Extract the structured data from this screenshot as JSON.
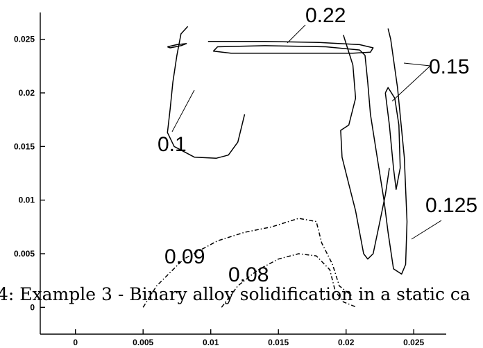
{
  "chart_data": {
    "type": "contour",
    "title": "",
    "xlabel": "",
    "ylabel": "",
    "xlim": [
      -0.0026,
      0.0274
    ],
    "ylim": [
      -0.0025,
      0.0275
    ],
    "x_ticks": [
      {
        "value": 0,
        "label": "0"
      },
      {
        "value": 0.005,
        "label": "0.005"
      },
      {
        "value": 0.01,
        "label": "0.01"
      },
      {
        "value": 0.015,
        "label": "0.015"
      },
      {
        "value": 0.02,
        "label": "0.02"
      },
      {
        "value": 0.025,
        "label": "0.025"
      }
    ],
    "y_ticks": [
      {
        "value": 0,
        "label": "0"
      },
      {
        "value": 0.005,
        "label": "0.005"
      },
      {
        "value": 0.01,
        "label": "0.01"
      },
      {
        "value": 0.015,
        "label": "0.015"
      },
      {
        "value": 0.02,
        "label": "0.02"
      },
      {
        "value": 0.025,
        "label": "0.025"
      }
    ],
    "grid": false,
    "contours": [
      {
        "level": "0.22",
        "style": "solid",
        "points": [
          [
            0.0068,
            0.0243
          ],
          [
            0.0075,
            0.0245
          ],
          [
            0.0082,
            0.0246
          ],
          [
            0.0078,
            0.0244
          ],
          [
            0.007,
            0.0242
          ],
          [
            0.0068,
            0.0243
          ]
        ]
      },
      {
        "level": "0.15",
        "style": "solid",
        "points": [
          [
            0.0098,
            0.0248
          ],
          [
            0.014,
            0.0248
          ],
          [
            0.018,
            0.0247
          ],
          [
            0.021,
            0.0245
          ],
          [
            0.022,
            0.0242
          ],
          [
            0.0218,
            0.0238
          ],
          [
            0.0205,
            0.0237
          ],
          [
            0.015,
            0.0237
          ],
          [
            0.0115,
            0.0237
          ],
          [
            0.0102,
            0.0239
          ],
          [
            0.0105,
            0.0243
          ],
          [
            0.014,
            0.0244
          ],
          [
            0.0185,
            0.0243
          ],
          [
            0.021,
            0.024
          ],
          [
            0.0214,
            0.0235
          ],
          [
            0.0216,
            0.021
          ],
          [
            0.0218,
            0.018
          ],
          [
            0.0223,
            0.014
          ],
          [
            0.0228,
            0.01
          ],
          [
            0.0231,
            0.007
          ],
          [
            0.0235,
            0.0036
          ],
          [
            0.0241,
            0.0031
          ],
          [
            0.0244,
            0.004
          ],
          [
            0.0245,
            0.008
          ],
          [
            0.0243,
            0.014
          ],
          [
            0.0238,
            0.0205
          ],
          [
            0.0233,
            0.025
          ],
          [
            0.0231,
            0.026
          ]
        ]
      },
      {
        "level": "0.15",
        "style": "solid",
        "points": [
          [
            0.0229,
            0.02
          ],
          [
            0.0232,
            0.017
          ],
          [
            0.0235,
            0.013
          ],
          [
            0.0237,
            0.011
          ],
          [
            0.024,
            0.013
          ],
          [
            0.0239,
            0.017
          ],
          [
            0.0236,
            0.0195
          ],
          [
            0.0231,
            0.0205
          ],
          [
            0.0229,
            0.02
          ]
        ]
      },
      {
        "level": "0.125",
        "style": "solid",
        "points": [
          [
            0.0198,
            0.0254
          ],
          [
            0.0205,
            0.0226
          ],
          [
            0.0207,
            0.0195
          ],
          [
            0.0202,
            0.017
          ],
          [
            0.0196,
            0.0165
          ],
          [
            0.0197,
            0.014
          ],
          [
            0.0202,
            0.0115
          ],
          [
            0.0207,
            0.009
          ],
          [
            0.021,
            0.007
          ],
          [
            0.0213,
            0.005
          ],
          [
            0.0216,
            0.0045
          ],
          [
            0.022,
            0.005
          ],
          [
            0.0225,
            0.008
          ],
          [
            0.0229,
            0.0105
          ],
          [
            0.0232,
            0.013
          ]
        ]
      },
      {
        "level": "0.1",
        "style": "solid",
        "points": [
          [
            0.0083,
            0.0262
          ],
          [
            0.0078,
            0.0255
          ],
          [
            0.0075,
            0.0235
          ],
          [
            0.0072,
            0.021
          ],
          [
            0.007,
            0.0185
          ],
          [
            0.0068,
            0.0163
          ],
          [
            0.0073,
            0.015
          ],
          [
            0.0088,
            0.014
          ],
          [
            0.0104,
            0.0139
          ],
          [
            0.0113,
            0.0142
          ],
          [
            0.012,
            0.0154
          ],
          [
            0.0125,
            0.018
          ]
        ]
      },
      {
        "level": "0.09",
        "style": "dashdot",
        "points": [
          [
            0.005,
            0.0
          ],
          [
            0.006,
            0.002
          ],
          [
            0.008,
            0.0045
          ],
          [
            0.0105,
            0.0062
          ],
          [
            0.0125,
            0.007
          ],
          [
            0.0145,
            0.0075
          ],
          [
            0.0165,
            0.0083
          ],
          [
            0.0178,
            0.008
          ],
          [
            0.0182,
            0.006
          ],
          [
            0.019,
            0.004
          ],
          [
            0.0195,
            0.002
          ],
          [
            0.0205,
            0.001
          ]
        ]
      },
      {
        "level": "0.08",
        "style": "dashdot",
        "points": [
          [
            0.0108,
            0.0
          ],
          [
            0.012,
            0.002
          ],
          [
            0.0135,
            0.0035
          ],
          [
            0.015,
            0.0045
          ],
          [
            0.0165,
            0.005
          ],
          [
            0.0178,
            0.0048
          ],
          [
            0.0188,
            0.0035
          ],
          [
            0.0192,
            0.0015
          ],
          [
            0.0198,
            0.0005
          ],
          [
            0.0208,
            0.0
          ]
        ]
      }
    ],
    "annotations": [
      {
        "text": "0.22"
      },
      {
        "text": "0.15"
      },
      {
        "text": "0.1"
      },
      {
        "text": "0.125"
      },
      {
        "text": "0.09"
      },
      {
        "text": "0.08"
      }
    ],
    "overlay_text": "4: Example 3 - Binary alloy solidification in a static ca"
  }
}
